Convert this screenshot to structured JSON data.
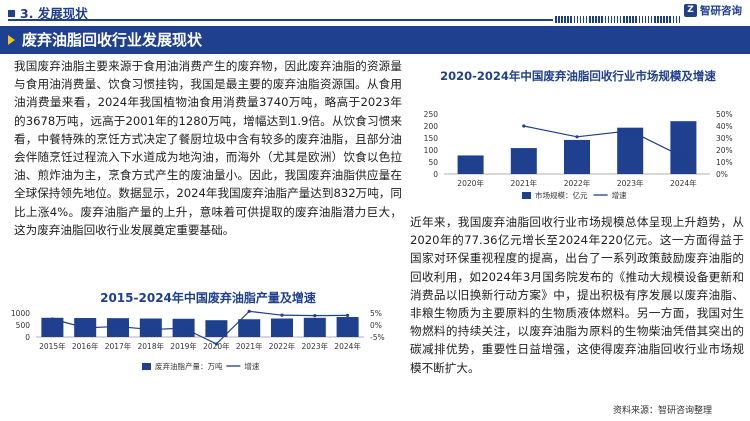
{
  "header": {
    "section_label": "3. 发展现状",
    "brand": "智研咨询"
  },
  "banner": {
    "title": "废弃油脂回收行业发展现状"
  },
  "paragraphs": {
    "left": "我国废弃油脂主要来源于食用油消费产生的废弃物，因此废弃油脂的资源量与食用油消费量、饮食习惯挂钩，我国是最主要的废弃油脂资源国。从食用油消费量来看，2024年我国植物油食用消费量3740万吨，略高于2023年的3678万吨，远高于2001年的1280万吨，增幅达到1.9倍。从饮食习惯来看，中餐特殊的烹饪方式决定了餐厨垃圾中含有较多的废弃油脂，且部分油会伴随烹饪过程流入下水道成为地沟油，而海外（尤其是欧洲）饮食以色拉油、煎炸油为主，烹食方式产生的废油量小。因此，我国废弃油脂供应量在全球保持领先地位。数据显示，2024年我国废弃油脂产量达到832万吨，同比上涨4%。废弃油脂产量的上升，意味着可供提取的废弃油脂潜力巨大，这为废弃油脂回收行业发展奠定重要基础。",
    "right": "近年来，我国废弃油脂回收行业市场规模总体呈现上升趋势，从2020年的77.36亿元增长至2024年220亿元。这一方面得益于国家对环保重视程度的提高，出台了一系列政策鼓励废弃油脂的回收利用，如2024年3月国务院发布的《推动大规模设备更新和消费品以旧换新行动方案》中，提出积极有序发展以废弃油脂、非粮生物质为主要原料的生物质液体燃料。另一方面，我国对生物燃料的持续关注，以废弃油脂为原料的生物柴油凭借其突出的碳减排优势，重要性日益增强，这使得废弃油脂回收行业市场规模不断扩大。"
  },
  "source": "资料来源：智研咨询整理",
  "colors": {
    "brand": "#1f3f8f",
    "bar": "#1f3f8f",
    "line": "#1f3f8f",
    "accent": "#f0c419"
  },
  "chart_data": [
    {
      "id": "market-size",
      "type": "bar",
      "title": "2020-2024年中国废弃油脂回收行业市场规模及增速",
      "categories": [
        "2020年",
        "2021年",
        "2022年",
        "2023年",
        "2024年"
      ],
      "series": [
        {
          "name": "市场规模：亿元",
          "kind": "bar",
          "axis": "left",
          "values": [
            77.36,
            108,
            142,
            193,
            220
          ]
        },
        {
          "name": "增速",
          "kind": "line",
          "axis": "right",
          "values": [
            null,
            40,
            31,
            36,
            14
          ]
        }
      ],
      "y_left": {
        "ticks": [
          0,
          50,
          100,
          150,
          200,
          250
        ],
        "ylim": [
          0,
          250
        ]
      },
      "y_right": {
        "ticks": [
          "0%",
          "10%",
          "20%",
          "30%",
          "40%",
          "50%"
        ],
        "ylim": [
          0,
          50
        ]
      },
      "grid": false,
      "legend": "bottom"
    },
    {
      "id": "production",
      "type": "bar",
      "title": "2015-2024年中国废弃油脂产量及增速",
      "categories": [
        "2015年",
        "2016年",
        "2017年",
        "2018年",
        "2019年",
        "2020年",
        "2021年",
        "2022年",
        "2023年",
        "2024年"
      ],
      "series": [
        {
          "name": "废弃油脂产量：万吨",
          "kind": "bar",
          "axis": "left",
          "values": [
            800,
            790,
            785,
            770,
            760,
            700,
            740,
            770,
            800,
            832
          ]
        },
        {
          "name": "增速",
          "kind": "line",
          "axis": "right",
          "values": [
            2.5,
            -1.2,
            -0.6,
            -1.9,
            -1.3,
            -7.9,
            5.7,
            4.1,
            3.9,
            4.0
          ]
        }
      ],
      "y_left": {
        "ticks": [
          0,
          500,
          1000
        ],
        "ylim": [
          0,
          1000
        ]
      },
      "y_right": {
        "ticks": [
          "-5%",
          "0%",
          "5%"
        ],
        "ylim": [
          -5,
          5
        ]
      },
      "grid": false,
      "legend": "bottom"
    }
  ]
}
